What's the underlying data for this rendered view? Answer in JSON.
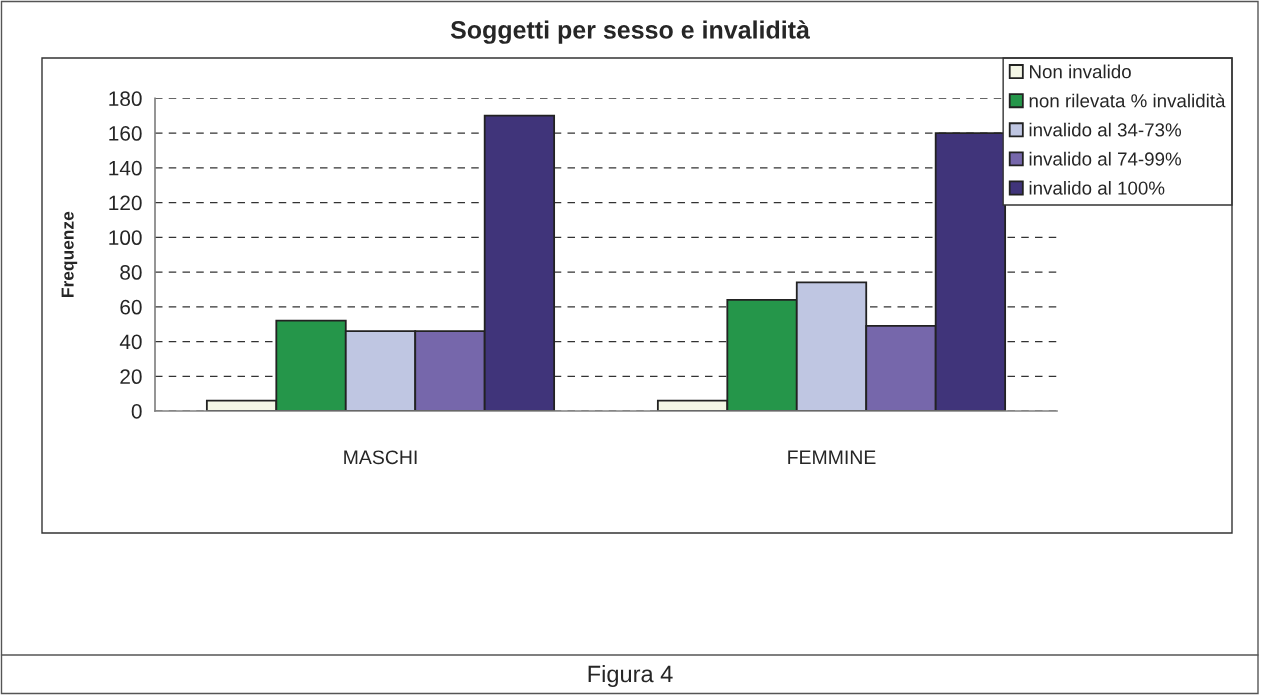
{
  "chart_data": {
    "type": "bar",
    "title": "Soggetti per sesso e invalidità",
    "ylabel": "Frequenze",
    "annotations": [
      "Figura 4"
    ],
    "categories": [
      "MASCHI",
      "FEMMINE"
    ],
    "series": [
      {
        "name": "Non invalido",
        "color": "#f4f6e6",
        "values": [
          6,
          6
        ]
      },
      {
        "name": "non rilevata % invalidità",
        "color": "#25964a",
        "values": [
          52,
          64
        ]
      },
      {
        "name": "invalido al 34-73%",
        "color": "#bfc6e2",
        "values": [
          46,
          74
        ]
      },
      {
        "name": "invalido al 74-99%",
        "color": "#7667ab",
        "values": [
          46,
          49
        ]
      },
      {
        "name": "invalido al 100%",
        "color": "#40347a",
        "values": [
          170,
          160
        ]
      }
    ],
    "ylim": [
      0,
      180
    ],
    "yticks": [
      0,
      20,
      40,
      60,
      80,
      100,
      120,
      140,
      160,
      180
    ],
    "grid": "y",
    "legend": "top right"
  }
}
